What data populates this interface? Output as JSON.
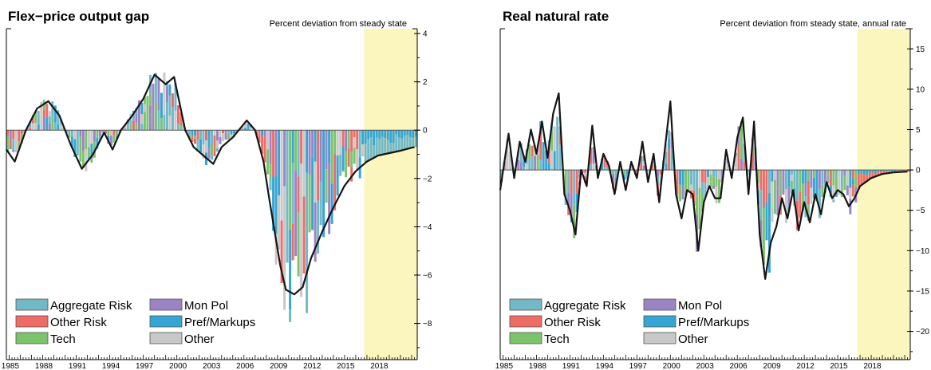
{
  "colors": {
    "aggregate_risk": "#72b8c7",
    "other_risk": "#ef6b66",
    "tech": "#7cc46c",
    "mon_pol": "#9c84c4",
    "pref_markups": "#35a5d3",
    "other": "#c8c8c8",
    "line": "#151515",
    "forecast_shade": "#fbf6bd",
    "zero_line": "#555555"
  },
  "chart_data": [
    {
      "type": "bar",
      "title": "Flex−price output gap",
      "subtitle": "Percent deviation from steady state",
      "ylim": [
        -9.5,
        4.2
      ],
      "y_ticks": [
        4,
        2,
        0,
        -2,
        -4,
        -6,
        -8
      ],
      "y_tick_labels": [
        "4",
        "2",
        "0",
        "−2",
        "−4",
        "−6",
        "−8"
      ],
      "x_tick_labels": [
        "1985",
        "1988",
        "1991",
        "1994",
        "1997",
        "2000",
        "2003",
        "2006",
        "2009",
        "2012",
        "2015",
        "2018"
      ],
      "x_range": [
        1984.75,
        2021.5
      ],
      "forecast_start": 2016.75,
      "legend_position": "bottom-left",
      "legend": [
        "Aggregate Risk",
        "Other Risk",
        "Tech",
        "Mon Pol",
        "Pref/Markups",
        "Other"
      ],
      "line": {
        "x": [
          1984.75,
          1985.5,
          1986.5,
          1987.5,
          1988.5,
          1989.5,
          1990.5,
          1991.5,
          1992.5,
          1993.5,
          1994.25,
          1995.0,
          1996.0,
          1997.0,
          1998.0,
          1999.0,
          1999.75,
          2000.75,
          2001.5,
          2002.5,
          2003.25,
          2004.0,
          2005.0,
          2006.25,
          2007.0,
          2007.75,
          2008.25,
          2008.75,
          2009.25,
          2009.75,
          2010.5,
          2011.25,
          2012.0,
          2013.0,
          2014.0,
          2015.0,
          2016.0,
          2017.0,
          2018.0,
          2019.0,
          2020.0,
          2021.25
        ],
        "y": [
          -0.8,
          -1.3,
          0.0,
          0.9,
          1.2,
          0.6,
          -0.6,
          -1.6,
          -1.0,
          -0.1,
          -0.8,
          0.0,
          0.6,
          1.3,
          2.3,
          1.9,
          2.2,
          0.0,
          -0.7,
          -1.1,
          -1.4,
          -0.7,
          -0.3,
          0.4,
          0.0,
          -1.3,
          -2.8,
          -4.2,
          -5.6,
          -6.6,
          -6.8,
          -6.5,
          -5.3,
          -4.2,
          -3.2,
          -2.3,
          -1.7,
          -1.3,
          -1.05,
          -0.95,
          -0.85,
          -0.7
        ]
      }
    },
    {
      "type": "bar",
      "title": "Real natural rate",
      "subtitle": "Percent deviation from steady state, annual rate",
      "ylim": [
        -23.5,
        17.5
      ],
      "y_ticks": [
        15,
        10,
        5,
        0,
        -5,
        -10,
        -15,
        -20
      ],
      "y_tick_labels": [
        "15",
        "10",
        "5",
        "0",
        "−5",
        "−10",
        "−15",
        "−20"
      ],
      "x_tick_labels": [
        "1985",
        "1988",
        "1991",
        "1994",
        "1997",
        "2000",
        "2003",
        "2006",
        "2009",
        "2012",
        "2015",
        "2018"
      ],
      "x_range": [
        1984.75,
        2021.5
      ],
      "forecast_start": 2016.75,
      "legend_position": "bottom-left",
      "legend": [
        "Aggregate Risk",
        "Other Risk",
        "Tech",
        "Mon Pol",
        "Pref/Markups",
        "Other"
      ],
      "line": {
        "x": [
          1984.75,
          1985.5,
          1986.0,
          1986.5,
          1987.0,
          1987.5,
          1988.0,
          1988.5,
          1989.0,
          1989.5,
          1990.0,
          1990.5,
          1991.0,
          1991.5,
          1992.0,
          1992.5,
          1993.0,
          1993.5,
          1994.0,
          1994.5,
          1995.0,
          1995.5,
          1996.0,
          1996.5,
          1997.0,
          1997.5,
          1998.0,
          1998.5,
          1999.0,
          1999.5,
          2000.0,
          2000.5,
          2001.0,
          2001.5,
          2002.0,
          2002.5,
          2003.0,
          2003.5,
          2004.0,
          2004.5,
          2005.0,
          2005.5,
          2006.0,
          2006.5,
          2007.0,
          2007.5,
          2008.0,
          2008.5,
          2009.0,
          2009.5,
          2010.0,
          2010.5,
          2011.0,
          2011.5,
          2012.0,
          2012.5,
          2013.0,
          2013.5,
          2014.0,
          2014.5,
          2015.0,
          2015.5,
          2016.0,
          2016.5,
          2017.0,
          2017.5,
          2018.0,
          2019.0,
          2020.0,
          2021.25
        ],
        "y": [
          -2.5,
          4.5,
          -1.0,
          3.5,
          1.0,
          5.0,
          2.0,
          6.0,
          1.5,
          7.0,
          9.5,
          -3.0,
          -5.0,
          -8.0,
          0.0,
          -2.0,
          5.5,
          -1.0,
          2.0,
          0.5,
          -3.0,
          1.0,
          -2.5,
          1.0,
          -1.0,
          3.5,
          -1.5,
          2.0,
          -4.0,
          2.5,
          8.5,
          -3.0,
          -6.0,
          -2.5,
          -3.0,
          -10.0,
          -4.0,
          -2.0,
          -3.5,
          -3.5,
          2.5,
          -1.0,
          4.0,
          6.5,
          -3.0,
          6.0,
          -8.0,
          -13.5,
          -9.0,
          -7.0,
          -3.5,
          -6.0,
          -2.5,
          -7.5,
          -4.0,
          -6.5,
          -3.0,
          -5.5,
          -1.5,
          -3.5,
          -2.5,
          -3.0,
          -4.5,
          -3.5,
          -2.0,
          -1.5,
          -1.0,
          -0.5,
          -0.3,
          -0.2
        ]
      }
    }
  ]
}
